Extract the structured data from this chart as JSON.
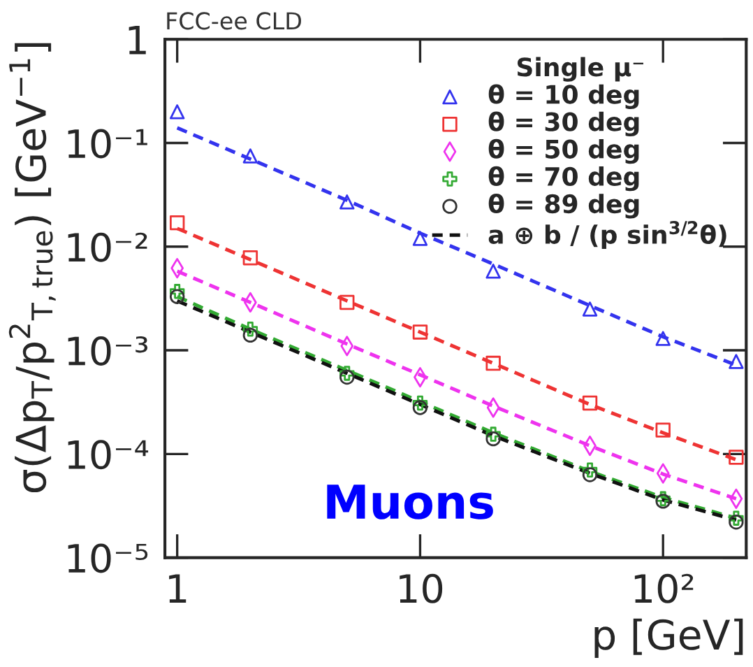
{
  "chart_data": {
    "type": "scatter",
    "xlabel": "p [GeV]",
    "ylabel": "σ(Δp$_{T}$/p$^{2}$$_{T,true}$) [GeV$^{−1}$]",
    "legend_title": "Single μ⁻",
    "annotations": [
      "FCC-ee CLD",
      "Muons"
    ],
    "x": [
      1,
      2,
      5,
      10,
      20,
      50,
      100,
      200
    ],
    "series": [
      {
        "name": "θ = 10 deg",
        "marker": "triangle",
        "color": "#3333ee",
        "values": [
          0.2,
          0.075,
          0.027,
          0.012,
          0.0058,
          0.0025,
          0.0013,
          0.00078
        ]
      },
      {
        "name": "θ = 30 deg",
        "marker": "square",
        "color": "#ee3333",
        "values": [
          0.017,
          0.0078,
          0.0029,
          0.0015,
          0.00075,
          0.00031,
          0.00017,
          9.3e-05
        ]
      },
      {
        "name": "θ = 50 deg",
        "marker": "diamond",
        "color": "#ee33ee",
        "values": [
          0.0062,
          0.0029,
          0.0011,
          0.00055,
          0.00028,
          0.00012,
          6.5e-05,
          3.7e-05
        ]
      },
      {
        "name": "θ = 70 deg",
        "marker": "cross",
        "color": "#33aa33",
        "values": [
          0.0037,
          0.0016,
          0.0006,
          0.00031,
          0.000155,
          7e-05,
          3.7e-05,
          2.4e-05
        ]
      },
      {
        "name": "θ = 89 deg",
        "marker": "circle",
        "color": "#333333",
        "values": [
          0.0033,
          0.0014,
          0.00055,
          0.00028,
          0.00014,
          6.3e-05,
          3.5e-05,
          2.2e-05
        ]
      },
      {
        "type": "line",
        "line_style": "dashed",
        "color": "#3333ee",
        "values": [
          0.14,
          0.07,
          0.028,
          0.0135,
          0.0068,
          0.0027,
          0.00135,
          0.00072
        ]
      },
      {
        "type": "line",
        "line_style": "dashed",
        "color": "#ee3333",
        "values": [
          0.015,
          0.0075,
          0.003,
          0.0015,
          0.00075,
          0.0003,
          0.00016,
          8.8e-05
        ]
      },
      {
        "type": "line",
        "line_style": "dashed",
        "color": "#ee33ee",
        "values": [
          0.0058,
          0.0029,
          0.00115,
          0.00058,
          0.00029,
          0.00012,
          6.4e-05,
          3.7e-05
        ]
      },
      {
        "type": "line",
        "line_style": "dashed",
        "color": "#33aa33",
        "values": [
          0.0033,
          0.0016,
          0.00064,
          0.00032,
          0.00016,
          6.8e-05,
          3.8e-05,
          2.4e-05
        ]
      },
      {
        "name": "a ⊕ b / (p sin$^{3/2}$θ)",
        "type": "line",
        "line_style": "dashed",
        "color": "#111111",
        "values": [
          0.003,
          0.0015,
          0.0006,
          0.0003,
          0.00015,
          6.5e-05,
          3.6e-05,
          2.3e-05
        ]
      }
    ],
    "log": "xy",
    "grid": false,
    "legend": "top right",
    "xlim": [
      0.89,
      220
    ],
    "xticks": [
      1,
      10,
      {
        "value": 100,
        "label": "10²"
      }
    ],
    "ylim": [
      1e-05,
      1
    ],
    "yticks": [
      {
        "value": 1e-05,
        "label": "10⁻⁵"
      },
      {
        "value": 0.0001,
        "label": "10⁻⁴"
      },
      {
        "value": 0.001,
        "label": "10⁻³"
      },
      {
        "value": 0.01,
        "label": "10⁻²"
      },
      {
        "value": 0.1,
        "label": "10⁻¹"
      },
      1
    ]
  }
}
